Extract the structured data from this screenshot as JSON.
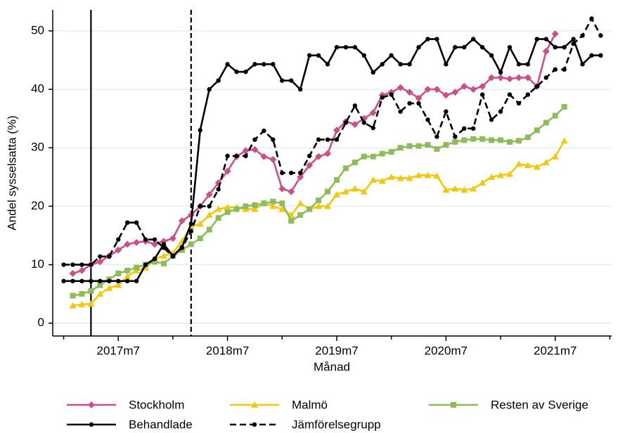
{
  "chart_data": {
    "type": "line",
    "xlabel": "Månad",
    "ylabel": "Andel sysselsatta (%)",
    "x": [
      684,
      685,
      686,
      687,
      688,
      689,
      690,
      691,
      692,
      693,
      694,
      695,
      696,
      697,
      698,
      699,
      700,
      701,
      702,
      703,
      704,
      705,
      706,
      707,
      708,
      709,
      710,
      711,
      712,
      713,
      714,
      715,
      716,
      717,
      718,
      719,
      720,
      721,
      722,
      723,
      724,
      725,
      726,
      727,
      728,
      729,
      730,
      731,
      732,
      733,
      734,
      735,
      736,
      737,
      738,
      739,
      740,
      741,
      742,
      743
    ],
    "xlim": [
      682.8,
      744.2
    ],
    "xticks": [
      {
        "value": 690,
        "label": "2017m7"
      },
      {
        "value": 702,
        "label": "2018m7"
      },
      {
        "value": 714,
        "label": "2019m7"
      },
      {
        "value": 726,
        "label": "2020m7"
      },
      {
        "value": 738,
        "label": "2021m7"
      }
    ],
    "xminorticks": [
      684,
      696,
      708,
      720,
      732,
      744
    ],
    "ylim": [
      -2.2,
      53.6
    ],
    "yticks": [
      0,
      10,
      20,
      30,
      40,
      50
    ],
    "grid": true,
    "vlines": [
      {
        "x": 687,
        "style": "solid"
      },
      {
        "x": 698,
        "style": "dashed"
      }
    ],
    "legend": "bottom",
    "series": [
      {
        "name": "Stockholm",
        "color": "#cc4f8a",
        "marker": "diamond",
        "dash": false,
        "values": [
          null,
          8.5,
          9,
          10,
          10.5,
          11.5,
          12.5,
          13.5,
          13.8,
          14,
          13.5,
          14,
          14.5,
          17.5,
          18.5,
          20,
          22,
          24,
          26,
          28.5,
          29.5,
          29.7,
          28.5,
          28,
          23,
          22.5,
          25,
          27,
          28.5,
          29,
          33,
          34.5,
          34,
          35,
          36,
          39,
          39.5,
          40.3,
          39.5,
          38.5,
          40,
          40,
          39,
          39.5,
          40.5,
          40,
          40.5,
          42,
          42,
          41.8,
          42,
          42,
          40.5,
          46.5,
          49.5,
          null,
          null,
          null,
          null,
          null
        ]
      },
      {
        "name": "Malmö",
        "color": "#f2c80f",
        "marker": "triangle",
        "dash": false,
        "values": [
          null,
          3,
          3.2,
          3.3,
          5,
          6,
          6.5,
          8,
          9,
          9.5,
          11,
          11.5,
          12,
          14,
          16.5,
          17,
          18.5,
          19.5,
          19.8,
          19.8,
          19.5,
          19.5,
          20.5,
          20,
          19.5,
          18.5,
          20.5,
          19.5,
          20,
          20,
          22,
          22.5,
          23,
          22.5,
          24.5,
          24.3,
          25,
          24.8,
          24.8,
          25.3,
          25.3,
          25.2,
          22.8,
          23,
          22.8,
          23,
          24,
          25,
          25.3,
          25.5,
          27.2,
          27,
          26.7,
          27.5,
          28.5,
          31.2,
          null,
          null,
          null,
          null
        ]
      },
      {
        "name": "Resten av Sverige",
        "color": "#8fbc5a",
        "marker": "square",
        "dash": false,
        "values": [
          null,
          4.7,
          5,
          5.5,
          6.5,
          7.5,
          8.5,
          9,
          9.5,
          10,
          10.5,
          10.2,
          11.5,
          12.5,
          13.5,
          14.5,
          16,
          18,
          19,
          19.5,
          20,
          20.2,
          20.5,
          20.8,
          20.5,
          17.5,
          18.5,
          19.5,
          21,
          22.5,
          24.5,
          26.5,
          27.5,
          28.5,
          28.5,
          29,
          29.3,
          30,
          30.3,
          30.3,
          30.5,
          29.8,
          30.5,
          31,
          31.3,
          31.5,
          31.5,
          31.3,
          31.3,
          31,
          31.2,
          31.8,
          33,
          34.3,
          35.5,
          37,
          null,
          null,
          null,
          null
        ]
      },
      {
        "name": "Behandlade",
        "color": "#000000",
        "marker": "circle",
        "dash": false,
        "values": [
          7.2,
          7.2,
          7.2,
          7.2,
          7.2,
          7.2,
          7.2,
          7.2,
          7.2,
          10,
          11,
          13.5,
          11.5,
          13,
          17,
          33,
          40,
          41.5,
          44.3,
          43,
          43,
          44.3,
          44.3,
          44.3,
          41.5,
          41.5,
          40,
          45.8,
          45.8,
          44.3,
          47.2,
          47.2,
          47.2,
          45.8,
          42.9,
          44.3,
          45.8,
          44.3,
          44.3,
          47.2,
          48.6,
          48.6,
          44.3,
          47.2,
          47.2,
          48.6,
          47.2,
          45.8,
          42.9,
          47.2,
          44.3,
          44.3,
          48.6,
          48.6,
          47.2,
          47.2,
          48.6,
          44.3,
          45.8,
          45.8
        ]
      },
      {
        "name": "Jämförelsegrupp",
        "color": "#000000",
        "marker": "circle",
        "dash": true,
        "values": [
          10,
          10,
          10,
          10,
          11.4,
          11.4,
          14.3,
          17.2,
          17.2,
          14.3,
          14.3,
          12.9,
          11.4,
          12.9,
          15.7,
          20,
          20,
          22.9,
          28.6,
          28.6,
          28.6,
          31.4,
          32.9,
          31.4,
          25.7,
          25.7,
          25.7,
          28.6,
          31.4,
          31.4,
          31.4,
          34.3,
          37.2,
          34.3,
          33.4,
          38.6,
          39.1,
          36.2,
          37.6,
          37.6,
          34.8,
          31.9,
          36.2,
          31.9,
          33.3,
          33.3,
          39.1,
          34.8,
          36.2,
          39.1,
          37.6,
          39.1,
          40.5,
          42,
          43.4,
          43.4,
          47.8,
          49.2,
          52.1,
          49.2
        ]
      }
    ]
  }
}
